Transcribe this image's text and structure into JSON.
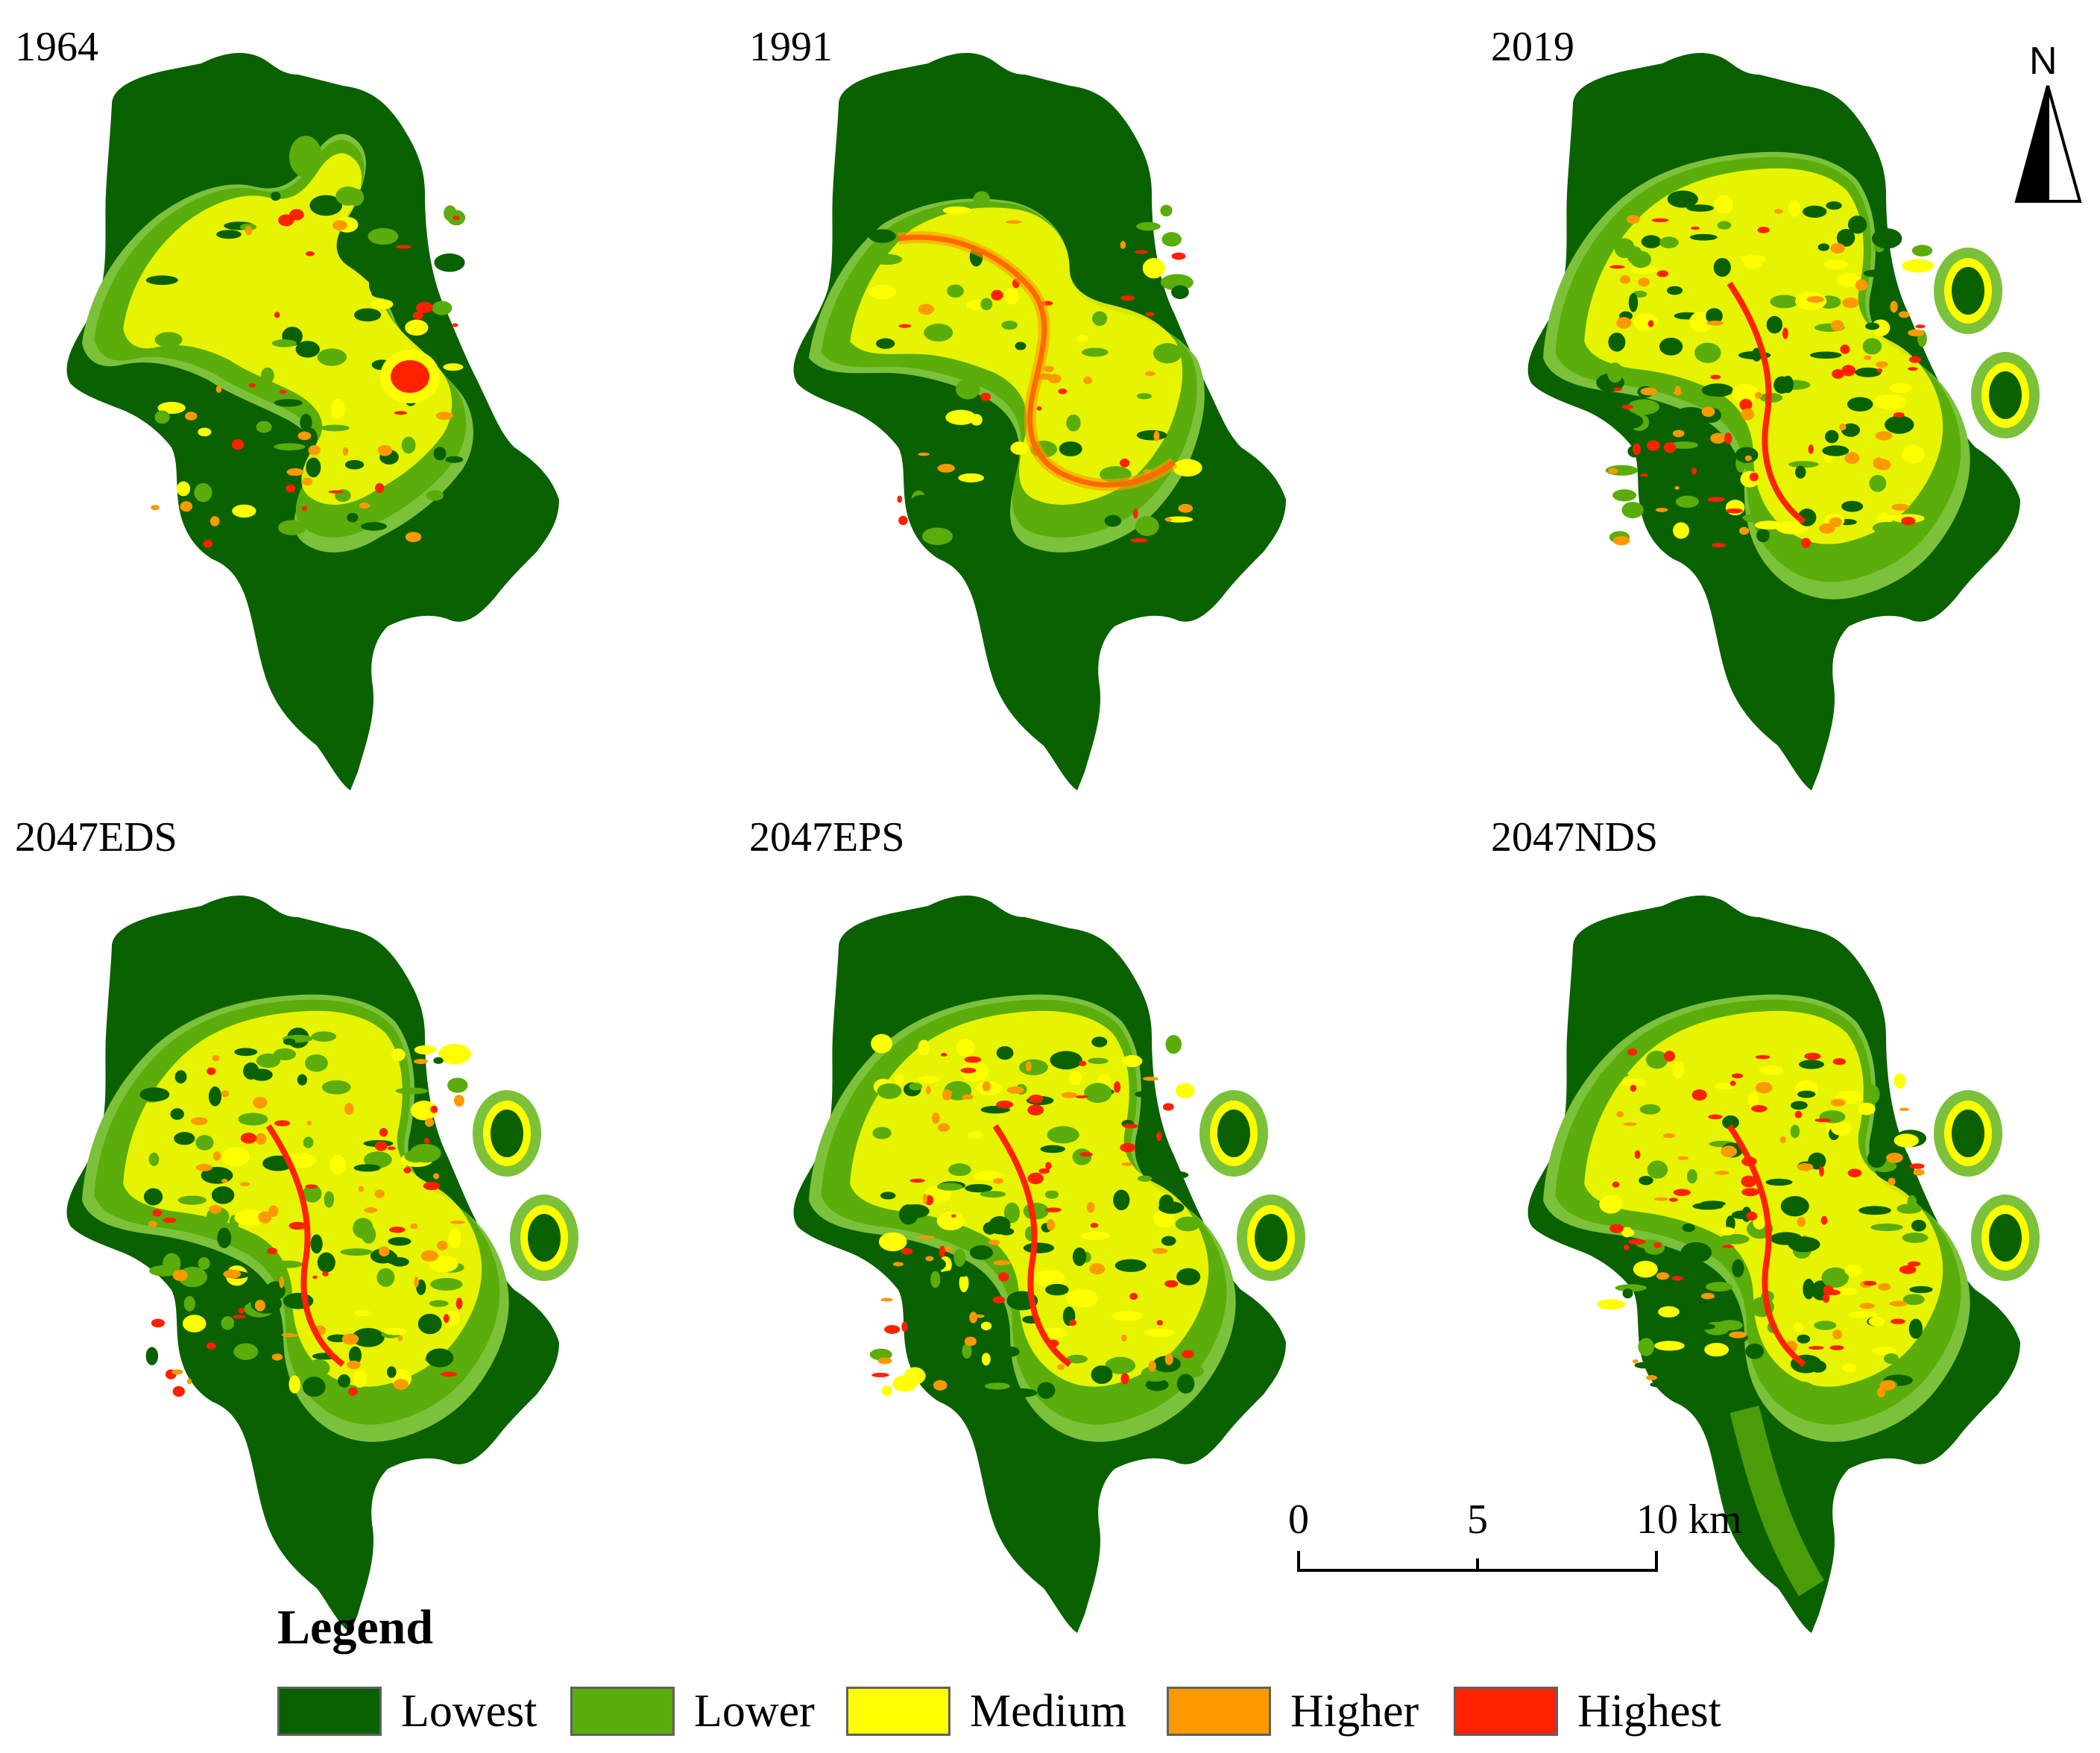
{
  "panels": [
    {
      "id": "p1964",
      "label": "1964"
    },
    {
      "id": "p1991",
      "label": "1991"
    },
    {
      "id": "p2019",
      "label": "2019"
    },
    {
      "id": "p2047eds",
      "label": "2047EDS"
    },
    {
      "id": "p2047eps",
      "label": "2047EPS"
    },
    {
      "id": "p2047nds",
      "label": "2047NDS"
    }
  ],
  "north_arrow": {
    "label": "N"
  },
  "scale_bar": {
    "ticks": [
      "0",
      "5",
      "10 km"
    ]
  },
  "legend": {
    "title": "Legend",
    "items": [
      {
        "label": "Lowest",
        "color": "#0a6100"
      },
      {
        "label": "Lower",
        "color": "#5aad0a"
      },
      {
        "label": "Medium",
        "color": "#ffff00"
      },
      {
        "label": "Higher",
        "color": "#ff9900"
      },
      {
        "label": "Highest",
        "color": "#ff2200"
      }
    ]
  },
  "colors": {
    "lowest": "#0a6100",
    "lower": "#5aad0a",
    "lower_light": "#7cc13a",
    "medium": "#ffff00",
    "higher": "#ff9900",
    "highest": "#ff2200"
  }
}
